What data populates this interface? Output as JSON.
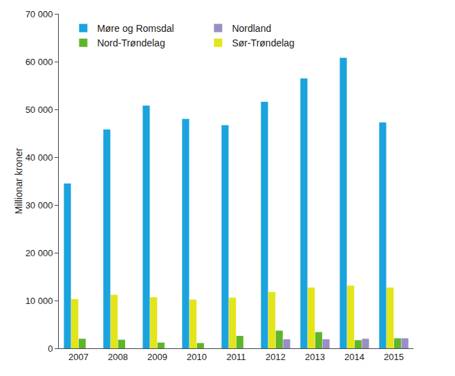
{
  "chart_data": {
    "type": "bar",
    "y_label": "Millionar kroner",
    "categories": [
      "2007",
      "2008",
      "2009",
      "2010",
      "2011",
      "2012",
      "2013",
      "2014",
      "2015"
    ],
    "series": [
      {
        "name": "Møre og Romsdal",
        "color": "#1aa3dd",
        "values": [
          34500,
          45800,
          50800,
          48000,
          46700,
          51600,
          56500,
          60800,
          47300
        ]
      },
      {
        "name": "Sør-Trøndelag",
        "color": "#e3e41a",
        "values": [
          10300,
          11200,
          10700,
          10200,
          10600,
          11800,
          12700,
          13100,
          12700
        ]
      },
      {
        "name": "Nord-Trøndelag",
        "color": "#5fb52a",
        "values": [
          2000,
          1800,
          1200,
          1100,
          2600,
          3700,
          3400,
          1700,
          2100
        ]
      },
      {
        "name": "Nordland",
        "color": "#9b8ec4",
        "values": [
          null,
          null,
          null,
          null,
          null,
          1900,
          1900,
          2000,
          2100
        ]
      }
    ],
    "ylim": [
      0,
      70000
    ],
    "yticks": [
      0,
      {
        "value": 10000,
        "label": "10 000"
      },
      {
        "value": 20000,
        "label": "20 000"
      },
      {
        "value": 30000,
        "label": "30 000"
      },
      {
        "value": 40000,
        "label": "40 000"
      },
      {
        "value": 50000,
        "label": "50 000"
      },
      {
        "value": 60000,
        "label": "60 000"
      },
      {
        "value": 70000,
        "label": "70 000"
      }
    ],
    "grid": false,
    "legend": "top left"
  }
}
